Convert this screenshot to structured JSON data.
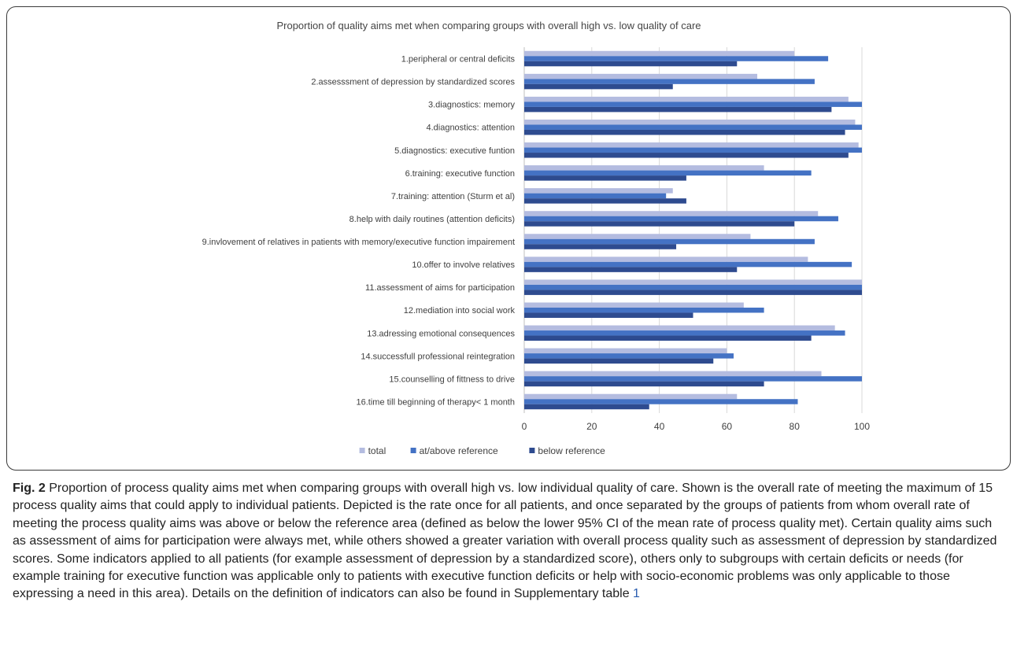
{
  "caption": {
    "label": "Fig. 2",
    "text": " Proportion of process quality aims met when comparing groups with overall high vs. low individual quality of care. Shown is the overall rate of meeting the maximum of 15 process quality aims that could apply to individual patients. Depicted is the rate once for all patients, and once separated by the groups of patients from whom overall rate of meeting the process quality aims was above or below the reference area (defined as below the lower 95% CI of the mean rate of process quality met). Certain quality aims such as assessment of aims for participation were always met, while others showed a greater variation with overall process quality such as assessment of depression by standardized scores. Some indicators applied to all patients (for example assessment of depression by a standardized score), others only to subgroups with certain deficits or needs (for example training for executive function was applicable only to patients with executive function deficits or help with socio-economic problems was only applicable to those expressing a need in this area). Details on the definition of indicators can also be found in Supplementary table ",
    "link_text": "1"
  },
  "chart_data": {
    "type": "bar",
    "orientation": "horizontal",
    "title": "Proportion of quality aims met when comparing groups with overall high vs. low quality of care",
    "categories": [
      "1.peripheral or central deficits",
      "2.assesssment of depression by standardized scores",
      "3.diagnostics: memory",
      "4.diagnostics: attention",
      "5.diagnostics: executive funtion",
      "6.training: executive function",
      "7.training: attention (Sturm et al)",
      "8.help with daily routines (attention deficits)",
      "9.invlovement of relatives in patients with memory/executive function impairement",
      "10.offer to involve relatives",
      "11.assessment of aims for participation",
      "12.mediation into social work",
      "13.adressing emotional consequences",
      "14.successfull professional reintegration",
      "15.counselling of fittness to drive",
      "16.time till beginning of therapy< 1 month"
    ],
    "series": [
      {
        "name": "total",
        "color": "#b4bce0",
        "values": [
          80,
          69,
          96,
          98,
          99,
          71,
          44,
          87,
          67,
          84,
          100,
          65,
          92,
          60,
          88,
          63
        ]
      },
      {
        "name": "at/above reference",
        "color": "#4472c4",
        "values": [
          90,
          86,
          100,
          100,
          100,
          85,
          42,
          93,
          86,
          97,
          100,
          71,
          95,
          62,
          100,
          81
        ]
      },
      {
        "name": "below reference",
        "color": "#2e4b8f",
        "values": [
          63,
          44,
          91,
          95,
          96,
          48,
          48,
          80,
          45,
          63,
          100,
          50,
          85,
          56,
          71,
          37
        ]
      }
    ],
    "xlim": [
      0,
      100
    ],
    "xticks": [
      0,
      20,
      40,
      60,
      80,
      100
    ],
    "grid": true,
    "legend_position": "bottom-center"
  }
}
